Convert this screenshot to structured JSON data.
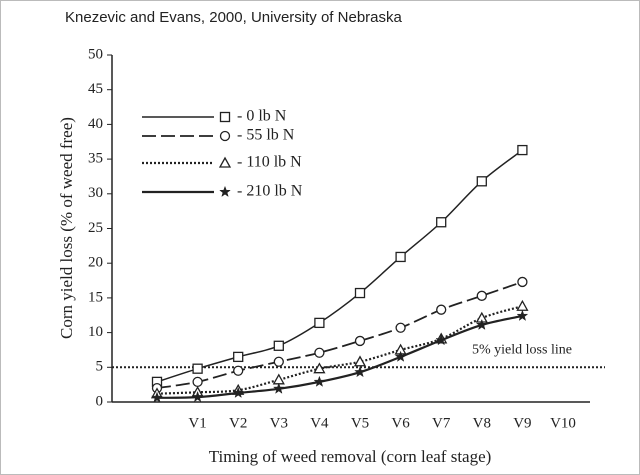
{
  "chart_data": {
    "type": "line",
    "title": "Knezevic and Evans, 2000, University of Nebraska",
    "xlabel": "Timing of weed removal (corn leaf stage)",
    "ylabel": "Corn yield loss (% of weed free)",
    "categories": [
      null,
      "V1",
      "V2",
      "V3",
      "V4",
      "V5",
      "V6",
      "V7",
      "V8",
      "V9",
      "V10"
    ],
    "ylim": [
      0,
      50
    ],
    "yticks": [
      0,
      5,
      10,
      15,
      20,
      25,
      30,
      35,
      40,
      45,
      50
    ],
    "legend": "upper left",
    "series": [
      {
        "name": "- 0 lb N",
        "color": "#222",
        "line_style": "solid",
        "marker": "square",
        "values": [
          2.9,
          4.8,
          6.5,
          8.1,
          11.4,
          15.7,
          20.9,
          25.9,
          31.8,
          36.3,
          null
        ]
      },
      {
        "name": "- 55 lb N",
        "color": "#222",
        "line_style": "dashed",
        "marker": "circle",
        "values": [
          2.0,
          2.9,
          4.5,
          5.8,
          7.1,
          8.8,
          10.7,
          13.3,
          15.3,
          17.3,
          null
        ]
      },
      {
        "name": "- 110 lb N",
        "color": "#222",
        "line_style": "dotted",
        "marker": "triangle",
        "values": [
          1.2,
          1.4,
          1.7,
          3.2,
          4.8,
          5.8,
          7.5,
          9.1,
          12.1,
          13.8,
          null
        ]
      },
      {
        "name": "- 210 lb N",
        "color": "#222",
        "line_style": "thick",
        "marker": "star",
        "values": [
          0.6,
          0.7,
          1.3,
          1.9,
          2.9,
          4.3,
          6.5,
          8.9,
          11.1,
          12.4,
          null
        ]
      }
    ],
    "reference_line": {
      "value": 5,
      "label": "5% yield loss line"
    }
  }
}
